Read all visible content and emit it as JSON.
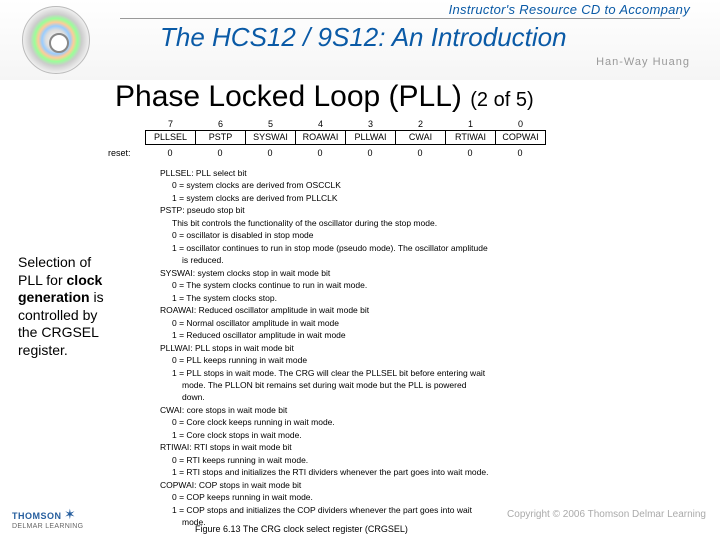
{
  "header": {
    "subtitle": "Instructor's Resource CD to Accompany",
    "title": "The HCS12 / 9S12: An Introduction",
    "author": "Han-Way Huang"
  },
  "slide": {
    "title_main": "Phase Locked Loop (PLL)",
    "title_sub": "(2 of 5)"
  },
  "bits": {
    "numbers": [
      "7",
      "6",
      "5",
      "4",
      "3",
      "2",
      "1",
      "0"
    ],
    "names": [
      "PLLSEL",
      "PSTP",
      "SYSWAI",
      "ROAWAI",
      "PLLWAI",
      "CWAI",
      "RTIWAI",
      "COPWAI"
    ],
    "reset_label": "reset:",
    "reset_values": [
      "0",
      "0",
      "0",
      "0",
      "0",
      "0",
      "0",
      "0"
    ]
  },
  "left_text": {
    "l1": "Selection of",
    "l2": "PLL for ",
    "l2b": "clock",
    "l3": "generation",
    "l3b": " is",
    "l4": "controlled by",
    "l5": "the CRGSEL",
    "l6": "register."
  },
  "desc": {
    "d0": "PLLSEL: PLL select bit",
    "d0a": "0 = system clocks are derived from OSCCLK",
    "d0b": "1 = system clocks are derived from PLLCLK",
    "d1": "PSTP: pseudo stop bit",
    "d1a": "This bit controls the functionality of the oscillator during the stop mode.",
    "d1b": "0 = oscillator is disabled in stop mode",
    "d1c": "1 = oscillator continues to run in stop mode (pseudo mode). The oscillator amplitude",
    "d1d": "is reduced.",
    "d2": "SYSWAI: system clocks stop in wait mode bit",
    "d2a": "0 = The system clocks continue to run in wait mode.",
    "d2b": "1 = The system clocks stop.",
    "d3": "ROAWAI: Reduced oscillator amplitude in wait mode bit",
    "d3a": "0 = Normal oscillator amplitude in wait mode",
    "d3b": "1 = Reduced oscillator amplitude in wait mode",
    "d4": "PLLWAI: PLL stops in wait mode bit",
    "d4a": "0 = PLL keeps running in wait mode",
    "d4b": "1 = PLL stops in wait mode. The CRG will clear the PLLSEL bit before entering wait",
    "d4c": "mode. The PLLON bit remains set during wait mode but the PLL is powered",
    "d4d": "down.",
    "d5": "CWAI: core stops in wait mode bit",
    "d5a": "0 = Core clock keeps running in wait mode.",
    "d5b": "1 = Core clock stops in wait mode.",
    "d6": "RTIWAI: RTI stops in wait mode bit",
    "d6a": "0 = RTI keeps running in wait mode.",
    "d6b": "1 = RTI stops and initializes the RTI dividers whenever the part goes into wait mode.",
    "d7": "COPWAI: COP stops in wait mode bit",
    "d7a": "0 = COP keeps running in wait mode.",
    "d7b": "1 = COP stops and initializes the COP dividers whenever the part goes into wait",
    "d7c": "mode."
  },
  "caption": "Figure 6.13 The CRG clock select register (CRGSEL)",
  "footer": {
    "thomson": "THOMSON",
    "delmar": "DELMAR LEARNING",
    "copyright": "Copyright © 2006 Thomson Delmar Learning"
  }
}
